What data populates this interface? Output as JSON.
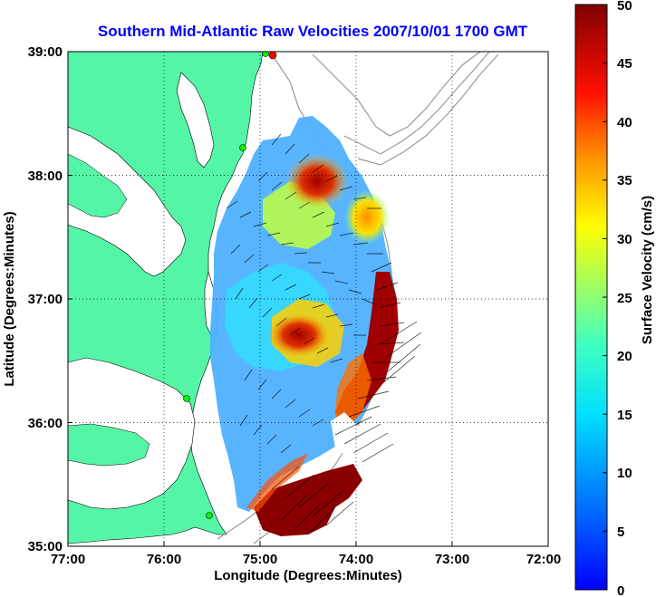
{
  "title": "Southern Mid-Atlantic Raw Velocities 2007/10/01 1700 GMT",
  "xlabel": "Longitude (Degrees:Minutes)",
  "ylabel": "Latitude (Degrees:Minutes)",
  "x_ticks": [
    "77:00",
    "76:00",
    "75:00",
    "74:00",
    "73:00",
    "72:00"
  ],
  "y_ticks": [
    "39:00",
    "38:00",
    "37:00",
    "36:00",
    "35:00"
  ],
  "colorbar": {
    "label": "Surface Velocity (cm/s)",
    "ticks": [
      "0",
      "5",
      "10",
      "15",
      "20",
      "25",
      "30",
      "35",
      "40",
      "45",
      "50"
    ],
    "range": [
      0,
      50
    ],
    "colormap": "jet"
  },
  "colors": {
    "land": "#55f5a8",
    "title": "#0000ff",
    "bathymetry": "#999999",
    "station_green": "#00ff00",
    "station_red": "#ff0000"
  },
  "chart_data": {
    "type": "map",
    "xlim": [
      -77.0,
      -72.0
    ],
    "ylim": [
      35.0,
      39.0
    ],
    "grid": true,
    "legend": "colorbar-right",
    "stations": [
      {
        "lon": -74.82,
        "lat": 38.97,
        "color": "red"
      },
      {
        "lon": -74.88,
        "lat": 38.97,
        "color": "green"
      },
      {
        "lon": -75.08,
        "lat": 38.22,
        "color": "green"
      },
      {
        "lon": -75.72,
        "lat": 36.18,
        "color": "green"
      },
      {
        "lon": -75.47,
        "lat": 35.25,
        "color": "green"
      }
    ]
  }
}
